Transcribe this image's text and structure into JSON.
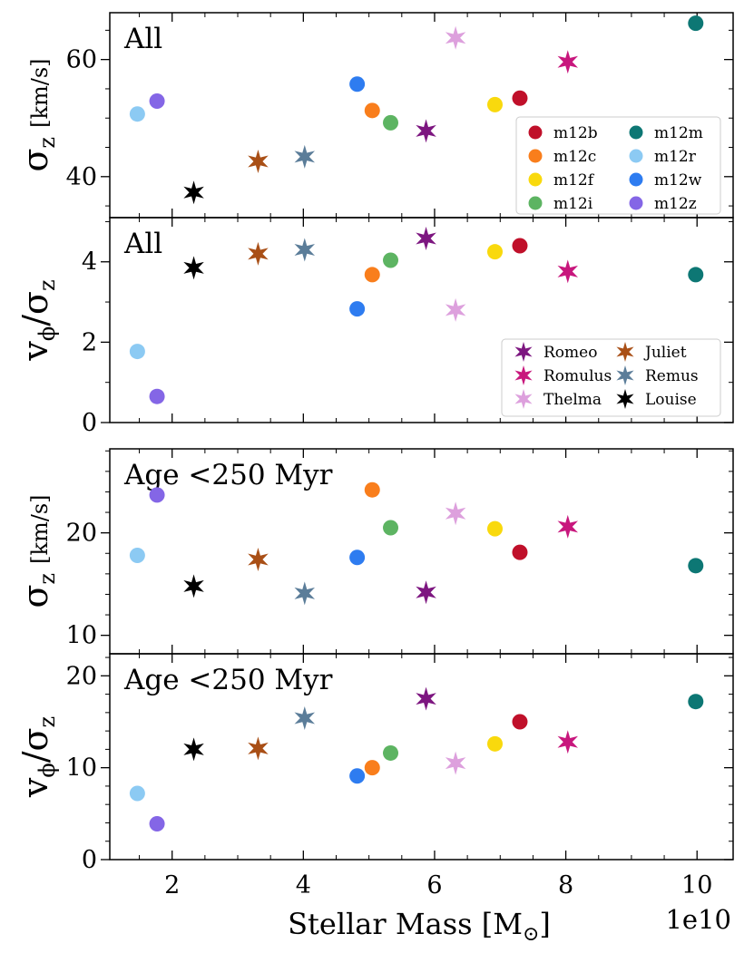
{
  "chart_data": [
    {
      "type": "scatter",
      "panel_label": "All",
      "ylabel_main": "σ",
      "ylabel_sub": "z",
      "ylabel_unit": "[km/s]",
      "ylim": [
        33,
        68
      ],
      "yticks": [
        40,
        60
      ],
      "yminor": [
        35,
        45,
        50,
        55,
        65
      ],
      "legend": "markers",
      "legend_position": "lower-right",
      "points": [
        {
          "name": "m12b",
          "x": 7.3,
          "y": 53.4
        },
        {
          "name": "m12c",
          "x": 5.05,
          "y": 51.3
        },
        {
          "name": "m12f",
          "x": 6.92,
          "y": 52.3
        },
        {
          "name": "m12i",
          "x": 5.33,
          "y": 49.2
        },
        {
          "name": "m12m",
          "x": 9.98,
          "y": 66.2
        },
        {
          "name": "m12r",
          "x": 1.47,
          "y": 50.7
        },
        {
          "name": "m12w",
          "x": 4.82,
          "y": 55.8
        },
        {
          "name": "m12z",
          "x": 1.77,
          "y": 52.9
        },
        {
          "name": "Romeo",
          "x": 5.87,
          "y": 47.8
        },
        {
          "name": "Romulus",
          "x": 8.03,
          "y": 59.6
        },
        {
          "name": "Thelma",
          "x": 6.32,
          "y": 63.7
        },
        {
          "name": "Juliet",
          "x": 3.31,
          "y": 42.6
        },
        {
          "name": "Remus",
          "x": 4.02,
          "y": 43.4
        },
        {
          "name": "Louise",
          "x": 2.33,
          "y": 37.3
        }
      ]
    },
    {
      "type": "scatter",
      "panel_label": "All",
      "ylabel_main": "v",
      "ylabel_sub1": "ϕ",
      "ylabel_slash": "/σ",
      "ylabel_sub": "z",
      "ylim": [
        0,
        5.1
      ],
      "yticks": [
        0,
        2,
        4
      ],
      "yminor": [
        1,
        3,
        5
      ],
      "legend": "stars",
      "legend_position": "lower-right",
      "points": [
        {
          "name": "m12b",
          "x": 7.3,
          "y": 4.4
        },
        {
          "name": "m12c",
          "x": 5.05,
          "y": 3.68
        },
        {
          "name": "m12f",
          "x": 6.92,
          "y": 4.25
        },
        {
          "name": "m12i",
          "x": 5.33,
          "y": 4.04
        },
        {
          "name": "m12m",
          "x": 9.98,
          "y": 3.68
        },
        {
          "name": "m12r",
          "x": 1.47,
          "y": 1.77
        },
        {
          "name": "m12w",
          "x": 4.82,
          "y": 2.83
        },
        {
          "name": "m12z",
          "x": 1.77,
          "y": 0.65
        },
        {
          "name": "Romeo",
          "x": 5.87,
          "y": 4.58
        },
        {
          "name": "Romulus",
          "x": 8.03,
          "y": 3.76
        },
        {
          "name": "Thelma",
          "x": 6.32,
          "y": 2.8
        },
        {
          "name": "Juliet",
          "x": 3.31,
          "y": 4.2
        },
        {
          "name": "Remus",
          "x": 4.02,
          "y": 4.3
        },
        {
          "name": "Louise",
          "x": 2.33,
          "y": 3.85
        }
      ]
    },
    {
      "type": "scatter",
      "panel_label": "Age <250 Myr",
      "ylabel_main": "σ",
      "ylabel_sub": "z",
      "ylabel_unit": "[km/s]",
      "ylim": [
        8.2,
        28.2
      ],
      "yticks": [
        10,
        20
      ],
      "yminor": [
        12,
        14,
        16,
        18,
        22,
        24,
        26,
        28
      ],
      "points": [
        {
          "name": "m12b",
          "x": 7.3,
          "y": 18.1
        },
        {
          "name": "m12c",
          "x": 5.05,
          "y": 24.2
        },
        {
          "name": "m12f",
          "x": 6.92,
          "y": 20.4
        },
        {
          "name": "m12i",
          "x": 5.33,
          "y": 20.5
        },
        {
          "name": "m12m",
          "x": 9.98,
          "y": 16.8
        },
        {
          "name": "m12r",
          "x": 1.47,
          "y": 17.8
        },
        {
          "name": "m12w",
          "x": 4.82,
          "y": 17.6
        },
        {
          "name": "m12z",
          "x": 1.77,
          "y": 23.7
        },
        {
          "name": "Romeo",
          "x": 5.87,
          "y": 14.2
        },
        {
          "name": "Romulus",
          "x": 8.03,
          "y": 20.6
        },
        {
          "name": "Thelma",
          "x": 6.32,
          "y": 21.9
        },
        {
          "name": "Juliet",
          "x": 3.31,
          "y": 17.4
        },
        {
          "name": "Remus",
          "x": 4.02,
          "y": 14.1
        },
        {
          "name": "Louise",
          "x": 2.33,
          "y": 14.8
        }
      ]
    },
    {
      "type": "scatter",
      "panel_label": "Age <250 Myr",
      "ylabel_main": "v",
      "ylabel_sub1": "ϕ",
      "ylabel_slash": "/σ",
      "ylabel_sub": "z",
      "ylim": [
        0,
        22.4
      ],
      "yticks": [
        0,
        10,
        20
      ],
      "yminor": [
        2,
        4,
        6,
        8,
        12,
        14,
        16,
        18,
        22
      ],
      "points": [
        {
          "name": "m12b",
          "x": 7.3,
          "y": 15.0
        },
        {
          "name": "m12c",
          "x": 5.05,
          "y": 10.0
        },
        {
          "name": "m12f",
          "x": 6.92,
          "y": 12.6
        },
        {
          "name": "m12i",
          "x": 5.33,
          "y": 11.6
        },
        {
          "name": "m12m",
          "x": 9.98,
          "y": 17.2
        },
        {
          "name": "m12r",
          "x": 1.47,
          "y": 7.2
        },
        {
          "name": "m12w",
          "x": 4.82,
          "y": 9.1
        },
        {
          "name": "m12z",
          "x": 1.77,
          "y": 3.9
        },
        {
          "name": "Romeo",
          "x": 5.87,
          "y": 17.5
        },
        {
          "name": "Romulus",
          "x": 8.03,
          "y": 12.8
        },
        {
          "name": "Thelma",
          "x": 6.32,
          "y": 10.5
        },
        {
          "name": "Juliet",
          "x": 3.31,
          "y": 12.1
        },
        {
          "name": "Remus",
          "x": 4.02,
          "y": 15.4
        },
        {
          "name": "Louise",
          "x": 2.33,
          "y": 12.0
        }
      ]
    }
  ],
  "xaxis": {
    "label": "Stellar Mass [M",
    "label_sub": "⊙",
    "label_end": "]",
    "xlim": [
      1.05,
      10.55
    ],
    "xticks": [
      2,
      4,
      6,
      8,
      10
    ],
    "xminor": [
      1.5,
      2.5,
      3,
      3.5,
      4.5,
      5,
      5.5,
      6.5,
      7,
      7.5,
      8.5,
      9,
      9.5
    ],
    "multiplier": "1e10"
  },
  "series_styles": {
    "m12b": {
      "marker": "circle",
      "color": "#c0102a"
    },
    "m12c": {
      "marker": "circle",
      "color": "#f97e1c"
    },
    "m12f": {
      "marker": "circle",
      "color": "#f9d90d"
    },
    "m12i": {
      "marker": "circle",
      "color": "#5db462"
    },
    "m12m": {
      "marker": "circle",
      "color": "#0d7774"
    },
    "m12r": {
      "marker": "circle",
      "color": "#8ccaf3"
    },
    "m12w": {
      "marker": "circle",
      "color": "#2e7cf0"
    },
    "m12z": {
      "marker": "circle",
      "color": "#8466e6"
    },
    "Romeo": {
      "marker": "star",
      "color": "#7d1680"
    },
    "Romulus": {
      "marker": "star",
      "color": "#c8177d"
    },
    "Thelma": {
      "marker": "star",
      "color": "#dda0dd"
    },
    "Juliet": {
      "marker": "star",
      "color": "#a94f16"
    },
    "Remus": {
      "marker": "star",
      "color": "#5b7d99"
    },
    "Louise": {
      "marker": "star",
      "color": "#000000"
    }
  },
  "legend_circles": [
    [
      "m12b",
      "m12m"
    ],
    [
      "m12c",
      "m12r"
    ],
    [
      "m12f",
      "m12w"
    ],
    [
      "m12i",
      "m12z"
    ]
  ],
  "legend_stars": [
    [
      "Romeo",
      "Juliet"
    ],
    [
      "Romulus",
      "Remus"
    ],
    [
      "Thelma",
      "Louise"
    ]
  ]
}
